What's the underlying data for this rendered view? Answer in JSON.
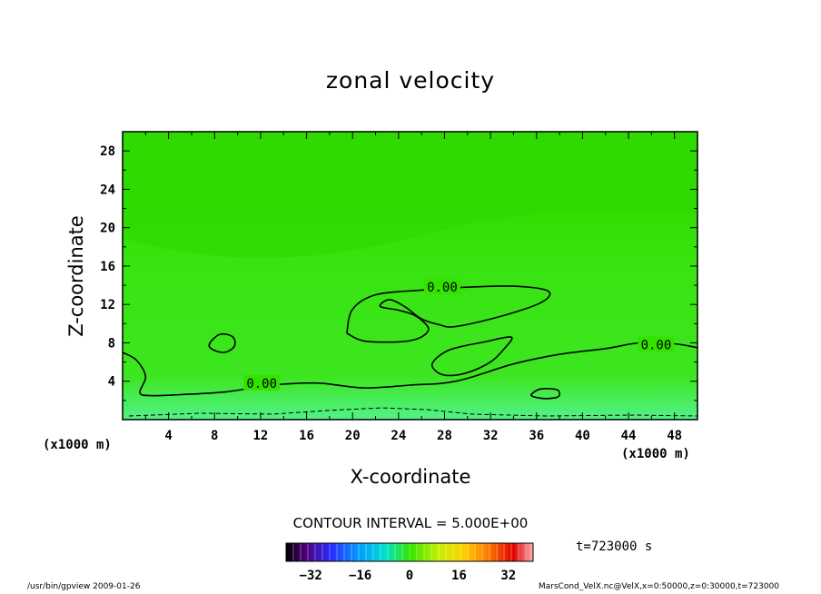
{
  "chart_data": {
    "type": "heatmap",
    "title": "zonal velocity",
    "xlabel": "X-coordinate",
    "ylabel": "Z-coordinate",
    "x_unit": "(x1000 m)",
    "y_unit": "(x1000 m)",
    "xlim": [
      0,
      50
    ],
    "ylim": [
      0,
      30
    ],
    "x_ticks": [
      4,
      8,
      12,
      16,
      20,
      24,
      28,
      32,
      36,
      40,
      44,
      48
    ],
    "y_ticks": [
      4,
      8,
      12,
      16,
      20,
      24,
      28
    ],
    "contour_interval_text": "CONTOUR INTERVAL = 5.000E+00",
    "contour_label": "0.00",
    "colorbar": {
      "range": [
        -40,
        40
      ],
      "ticks": [
        -32,
        -16,
        0,
        16,
        32
      ],
      "tick_labels": [
        "−32",
        "−16",
        "0",
        "16",
        "32"
      ]
    },
    "zero_contours": [
      {
        "name": "lower-zero-line",
        "points": [
          [
            0,
            7
          ],
          [
            1.2,
            6.2
          ],
          [
            2,
            4.5
          ],
          [
            1.5,
            2.8
          ],
          [
            2.5,
            2.5
          ],
          [
            5,
            2.6
          ],
          [
            9,
            2.9
          ],
          [
            13,
            3.6
          ],
          [
            17,
            3.8
          ],
          [
            21,
            3.3
          ],
          [
            25,
            3.6
          ],
          [
            29,
            4.0
          ],
          [
            34,
            5.8
          ],
          [
            38,
            6.8
          ],
          [
            42,
            7.4
          ],
          [
            45,
            8.0
          ],
          [
            48,
            7.9
          ],
          [
            50,
            7.5
          ]
        ]
      },
      {
        "name": "small-loop-x9",
        "closed": true,
        "points": [
          [
            7.6,
            8
          ],
          [
            8.5,
            8.9
          ],
          [
            9.6,
            8.6
          ],
          [
            9.7,
            7.6
          ],
          [
            8.8,
            7.0
          ],
          [
            7.7,
            7.4
          ]
        ]
      },
      {
        "name": "spiral-upper",
        "points": [
          [
            19.5,
            9
          ],
          [
            20,
            11.5
          ],
          [
            22,
            13
          ],
          [
            26,
            13.5
          ],
          [
            30,
            13.8
          ],
          [
            34,
            13.9
          ],
          [
            37,
            13.4
          ],
          [
            36.4,
            12.2
          ],
          [
            33,
            10.8
          ],
          [
            29,
            9.7
          ],
          [
            27.5,
            9.9
          ],
          [
            26,
            10.5
          ],
          [
            24.5,
            11.8
          ],
          [
            23.2,
            12.5
          ],
          [
            22.4,
            11.8
          ],
          [
            24,
            11.4
          ],
          [
            25.5,
            10.8
          ],
          [
            26.6,
            9.5
          ],
          [
            25.8,
            8.5
          ],
          [
            24,
            8.1
          ],
          [
            21,
            8.2
          ],
          [
            19.5,
            9
          ]
        ]
      },
      {
        "name": "lower-loop-x30",
        "closed": true,
        "points": [
          [
            27,
            6
          ],
          [
            28.5,
            7.3
          ],
          [
            31.5,
            8.1
          ],
          [
            33.8,
            8.6
          ],
          [
            33.2,
            7.4
          ],
          [
            32,
            6.0
          ],
          [
            30,
            4.9
          ],
          [
            28.2,
            4.6
          ],
          [
            27.2,
            5.1
          ]
        ]
      },
      {
        "name": "small-loop-x36",
        "closed": true,
        "points": [
          [
            35.6,
            2.7
          ],
          [
            36.4,
            3.2
          ],
          [
            37.8,
            3.1
          ],
          [
            37.9,
            2.4
          ],
          [
            36.8,
            2.2
          ],
          [
            35.7,
            2.4
          ]
        ]
      }
    ],
    "zero_labels": [
      {
        "x": 12.1,
        "y": 3.8,
        "text": "0.00"
      },
      {
        "x": 27.8,
        "y": 13.8,
        "text": "0.00"
      },
      {
        "x": 46.4,
        "y": 7.8,
        "text": "0.00"
      }
    ]
  },
  "footer": {
    "left": "/usr/bin/gpview   2009-01-26",
    "right": "MarsCond_VelX.nc@VelX,x=0:50000,z=0:30000,t=723000"
  },
  "time_label": "t=723000  s",
  "colors": {
    "field_main": "#33e600",
    "field_top": "#2eda00",
    "field_bottom": "#44f07a"
  }
}
